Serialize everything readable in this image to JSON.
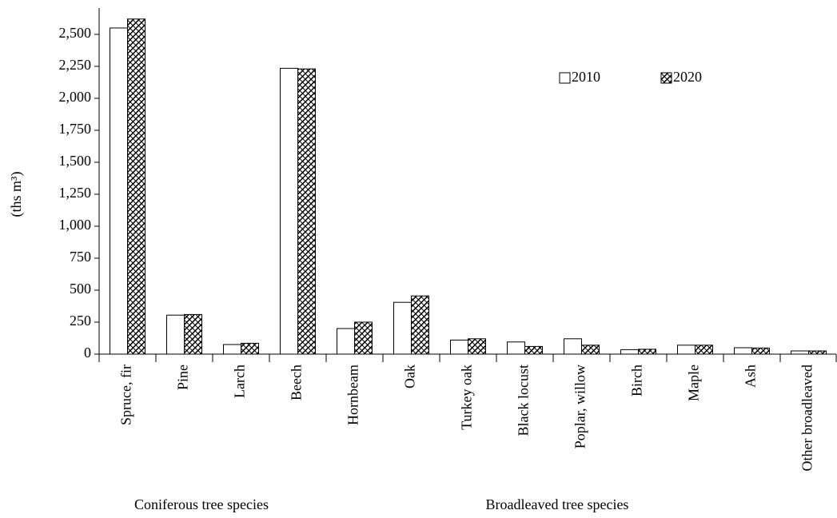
{
  "chart_data": {
    "type": "bar",
    "y_label": "(ths m³)",
    "categories": [
      "Spruce, fir",
      "Pine",
      "Larch",
      "Beech",
      "Hornbeam",
      "Oak",
      "Turkey oak",
      "Black locust",
      "Poplar, willow",
      "Birch",
      "Maple",
      "Ash",
      "Other broadleaved"
    ],
    "groups": [
      "Coniferous tree species",
      "Broadleaved tree species"
    ],
    "series": [
      {
        "name": "2010",
        "color": "#ffffff",
        "values": [
          2550,
          305,
          75,
          2235,
          200,
          405,
          110,
          95,
          120,
          35,
          70,
          50,
          25
        ]
      },
      {
        "name": "2020",
        "color": "#ffffff",
        "pattern": "hatch",
        "values": [
          2620,
          310,
          85,
          2230,
          250,
          455,
          120,
          60,
          70,
          38,
          70,
          48,
          25
        ]
      }
    ],
    "ylim": [
      0,
      2750
    ],
    "yticks": [
      0,
      250,
      500,
      750,
      {
        "value": 1000,
        "label": "1,000"
      },
      {
        "value": 1250,
        "label": "1,250"
      },
      {
        "value": 1500,
        "label": "1,500"
      },
      {
        "value": 1750,
        "label": "1,750"
      },
      {
        "value": 2000,
        "label": "2,000"
      },
      {
        "value": 2250,
        "label": "2,250"
      },
      {
        "value": 2500,
        "label": "2,500"
      }
    ],
    "grid": false,
    "legend": "top-right"
  }
}
